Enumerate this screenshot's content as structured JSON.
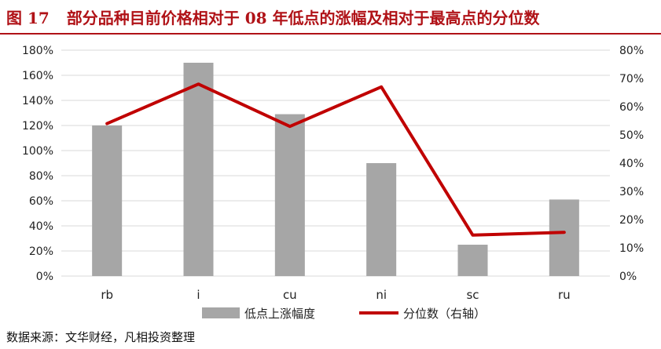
{
  "header": {
    "figure_number": "图 17",
    "title": "部分品种目前价格相对于 08 年低点的涨幅及相对于最高点的分位数"
  },
  "source_note": "数据来源：文华财经，凡相投资整理",
  "colors": {
    "bar": "#a6a6a6",
    "line": "#c00000",
    "title": "#b01217",
    "grid": "#d9d9d9"
  },
  "chart_data": {
    "type": "bar",
    "categories": [
      "rb",
      "i",
      "cu",
      "ni",
      "sc",
      "ru"
    ],
    "series": [
      {
        "name": "低点上涨幅度",
        "type": "bar",
        "axis": "left",
        "values": [
          1.2,
          1.7,
          1.29,
          0.9,
          0.25,
          0.61
        ]
      },
      {
        "name": "分位数（右轴）",
        "type": "line",
        "axis": "right",
        "values": [
          0.54,
          0.68,
          0.53,
          0.67,
          0.145,
          0.155
        ]
      }
    ],
    "y_left": {
      "ylim": [
        0,
        1.8
      ],
      "ticks": [
        "0%",
        "20%",
        "40%",
        "60%",
        "80%",
        "100%",
        "120%",
        "140%",
        "160%",
        "180%"
      ]
    },
    "y_right": {
      "ylim": [
        0,
        0.8
      ],
      "ticks": [
        "0%",
        "10%",
        "20%",
        "30%",
        "40%",
        "50%",
        "60%",
        "70%",
        "80%"
      ]
    },
    "grid": true,
    "legend_position": "bottom"
  }
}
